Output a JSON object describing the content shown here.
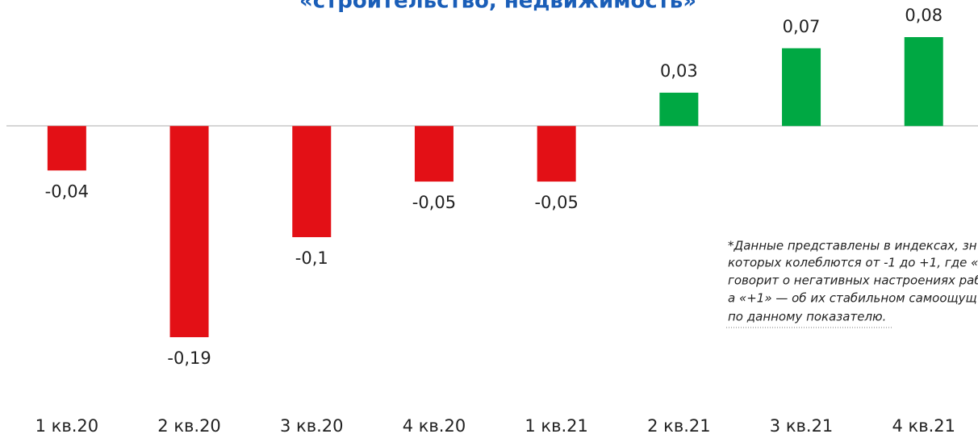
{
  "chart_data": {
    "type": "bar",
    "title": "«строительство, недвижимость»",
    "categories": [
      "1 кв.20",
      "2 кв.20",
      "3 кв.20",
      "4 кв.20",
      "1 кв.21",
      "2 кв.21",
      "3 кв.21",
      "4 кв.21"
    ],
    "values": [
      -0.04,
      -0.19,
      -0.1,
      -0.05,
      -0.05,
      0.03,
      0.07,
      0.08
    ],
    "value_labels": [
      "-0,04",
      "-0,19",
      "-0,1",
      "-0,05",
      "-0,05",
      "0,03",
      "0,07",
      "0,08"
    ],
    "colors": [
      "#e31016",
      "#e31016",
      "#e31016",
      "#e31016",
      "#e31016",
      "#00a843",
      "#00a843",
      "#00a843"
    ],
    "annotation": [
      "*Данные представлены в индексах, зн",
      "которых колеблются от -1 до +1, где «",
      "говорит о негативных настроениях раб",
      "а «+1» — об их стабильном самоощущ",
      "по данному показателю."
    ]
  }
}
